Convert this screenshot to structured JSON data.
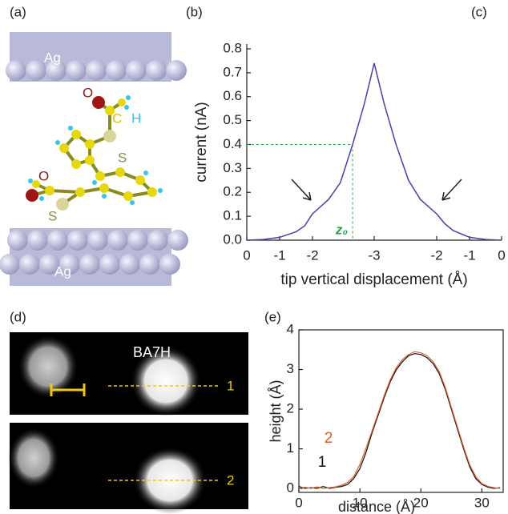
{
  "panel_labels": [
    "(a)",
    "(b)",
    "(c)",
    "(d)",
    "(e)"
  ],
  "molecule": {
    "atom_labels": [
      "Ag",
      "O",
      "C",
      "H",
      "S",
      "O",
      "S",
      "Ag"
    ]
  },
  "stm": {
    "molecule_label": "BA7H",
    "line_labels": [
      "1",
      "2"
    ]
  },
  "chart_data": [
    {
      "type": "line",
      "xlabel": "tip vertical displacement (Å)",
      "ylabel": "current (nA)",
      "xticks": [
        0,
        -1,
        -2,
        -3,
        -2,
        -1,
        0
      ],
      "ylim": [
        0,
        0.82
      ],
      "yticks": [
        {
          "value": 0,
          "label": "0.0"
        },
        0.1,
        0.2,
        0.3,
        0.4,
        0.5,
        0.6,
        0.7,
        0.8
      ],
      "series": [
        {
          "color": "#4b3fa8",
          "x": [
            0,
            -0.5,
            -1,
            -1.5,
            -1.76,
            -2,
            -2.26,
            -2.45,
            -2.65,
            -2.84,
            -3
          ],
          "values": [
            0,
            0.003,
            0.012,
            0.035,
            0.06,
            0.11,
            0.17,
            0.24,
            0.4,
            0.57,
            0.74
          ]
        },
        {
          "color": "#4b3fa8",
          "x": [
            -3,
            -2.84,
            -2.65,
            -2.45,
            -2.26,
            -2,
            -1.76,
            -1.5,
            -1,
            -0.5,
            0
          ],
          "values": [
            0.74,
            0.57,
            0.4,
            0.25,
            0.17,
            0.11,
            0.07,
            0.04,
            0.012,
            0.003,
            0
          ]
        }
      ],
      "annotation": {
        "x": -2.65,
        "y": 0.4,
        "label": "z₀",
        "color": "#2aa04a"
      }
    },
    {
      "type": "line",
      "xlabel": "distance (Å)",
      "ylabel": "height (Å)",
      "xlim": [
        0,
        33.5
      ],
      "xticks": [
        0,
        10,
        20,
        30
      ],
      "ylim": [
        -0.1,
        4
      ],
      "yticks": [
        0,
        1,
        2,
        3,
        4
      ],
      "series": [
        {
          "name": "1",
          "color": "#111111",
          "x": [
            0,
            1,
            2,
            3,
            4,
            5,
            6,
            7,
            8,
            9,
            10,
            11,
            12,
            13,
            14,
            15,
            16,
            17,
            18,
            19,
            20,
            21,
            22,
            23,
            24,
            25,
            26,
            27,
            28,
            29,
            30,
            31,
            32,
            33
          ],
          "values": [
            0.05,
            0,
            0.02,
            0,
            0.05,
            0,
            0.03,
            0.05,
            0.1,
            0.25,
            0.5,
            0.9,
            1.4,
            1.85,
            2.3,
            2.7,
            3.0,
            3.2,
            3.35,
            3.4,
            3.38,
            3.3,
            3.15,
            2.9,
            2.5,
            2.0,
            1.5,
            1.0,
            0.55,
            0.25,
            0.1,
            0.03,
            0,
            0.02
          ]
        },
        {
          "name": "2",
          "color": "#e05a2b",
          "x": [
            0,
            1,
            2,
            3,
            4,
            5,
            6,
            7,
            8,
            9,
            10,
            11,
            12,
            13,
            14,
            15,
            16,
            17,
            18,
            19,
            20,
            21,
            22,
            23,
            24,
            25,
            26,
            27,
            28,
            29,
            30,
            31,
            32,
            33
          ],
          "values": [
            0,
            0.03,
            0,
            0.04,
            0,
            0.02,
            0.04,
            0.08,
            0.15,
            0.3,
            0.6,
            1.0,
            1.45,
            1.9,
            2.35,
            2.75,
            3.05,
            3.25,
            3.38,
            3.45,
            3.42,
            3.35,
            3.2,
            2.95,
            2.55,
            2.05,
            1.55,
            1.05,
            0.6,
            0.3,
            0.12,
            0.05,
            0.02,
            0
          ]
        }
      ]
    }
  ]
}
